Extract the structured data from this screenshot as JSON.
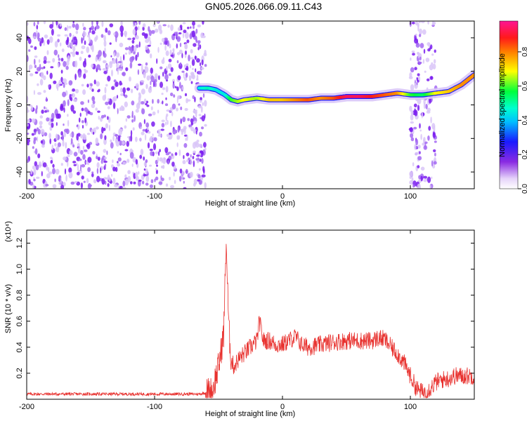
{
  "title": "GN05.2026.066.09.11.C43",
  "colors": {
    "snr_line": "#e8312e",
    "scatter_purple": "#7a1cf0",
    "scatter_light": "#cdb0f5"
  },
  "colorbar": {
    "label": "Normalized spectral amplitude",
    "ticks": [
      "0.0",
      "0.2",
      "0.4",
      "0.6",
      "0.8"
    ],
    "tick_values": [
      0.0,
      0.2,
      0.4,
      0.6,
      0.8
    ],
    "range": [
      0,
      0.98
    ],
    "colormap": "rainbow (violet-blue-cyan-green-yellow-red-magenta)"
  },
  "chart_data": [
    {
      "type": "heatmap",
      "name": "spectrogram",
      "xlabel": "Height of straight line (km)",
      "ylabel": "Frequency (Hz)",
      "xlim": [
        -200,
        150
      ],
      "ylim": [
        -50,
        50
      ],
      "x_ticks": [
        -200,
        -100,
        0,
        100
      ],
      "y_ticks": [
        -40,
        -20,
        0,
        20,
        40
      ],
      "x_tick_labels": [
        "-200",
        "-100",
        "0",
        "100"
      ],
      "y_tick_labels": [
        "-40",
        "-20",
        "0",
        "20",
        "40"
      ],
      "noise_bands": [
        {
          "x_range": [
            -200,
            -60
          ],
          "amplitude": 0.15
        },
        {
          "x_range": [
            100,
            120
          ],
          "amplitude": 0.12
        }
      ],
      "ridge": {
        "x": [
          -65,
          -58,
          -52,
          -45,
          -40,
          -35,
          -30,
          -20,
          -10,
          0,
          10,
          20,
          30,
          40,
          50,
          60,
          70,
          80,
          90,
          100,
          110,
          120,
          130,
          140,
          150
        ],
        "y": [
          10,
          10,
          9,
          6,
          3,
          2,
          3,
          4,
          3,
          3,
          3,
          3,
          4,
          4,
          5,
          5,
          5,
          6,
          7,
          6,
          6,
          7,
          8,
          12,
          18
        ],
        "amplitude": [
          0.45,
          0.5,
          0.45,
          0.45,
          0.6,
          0.65,
          0.7,
          0.65,
          0.75,
          0.75,
          0.8,
          0.85,
          0.8,
          0.85,
          0.95,
          0.95,
          0.9,
          0.85,
          0.8,
          0.6,
          0.55,
          0.7,
          0.75,
          0.8,
          0.8
        ]
      }
    },
    {
      "type": "line",
      "name": "snr",
      "xlabel": "Height of straight line (km)",
      "ylabel": "SNR (10 * v/v)",
      "y_scale_label": "(x10⁴)",
      "xlim": [
        -200,
        150
      ],
      "ylim": [
        0,
        1.3
      ],
      "x_ticks": [
        -200,
        -100,
        0,
        100
      ],
      "y_ticks": [
        0.2,
        0.4,
        0.6,
        0.8,
        1.0,
        1.2
      ],
      "x_tick_labels": [
        "-200",
        "-100",
        "0",
        "100"
      ],
      "y_tick_labels": [
        "0.2",
        "0.4",
        "0.6",
        "0.8",
        "1.0",
        "1.2"
      ],
      "series": [
        {
          "x": [
            -200,
            -180,
            -160,
            -140,
            -120,
            -100,
            -80,
            -65,
            -55,
            -50,
            -46,
            -44,
            -42,
            -40,
            -38,
            -35,
            -30,
            -25,
            -20,
            -18,
            -15,
            -10,
            -5,
            0,
            5,
            10,
            15,
            20,
            30,
            40,
            50,
            60,
            70,
            75,
            80,
            85,
            90,
            95,
            100,
            105,
            110,
            115,
            120,
            125,
            130,
            135,
            140,
            145,
            150
          ],
          "values": [
            0.04,
            0.04,
            0.04,
            0.04,
            0.04,
            0.04,
            0.04,
            0.04,
            0.06,
            0.25,
            0.5,
            1.22,
            0.55,
            0.3,
            0.25,
            0.3,
            0.35,
            0.4,
            0.45,
            0.6,
            0.45,
            0.45,
            0.42,
            0.42,
            0.45,
            0.48,
            0.42,
            0.4,
            0.42,
            0.44,
            0.45,
            0.45,
            0.45,
            0.47,
            0.46,
            0.4,
            0.35,
            0.28,
            0.18,
            0.08,
            0.05,
            0.08,
            0.13,
            0.15,
            0.16,
            0.18,
            0.18,
            0.18,
            0.18
          ]
        }
      ]
    }
  ]
}
